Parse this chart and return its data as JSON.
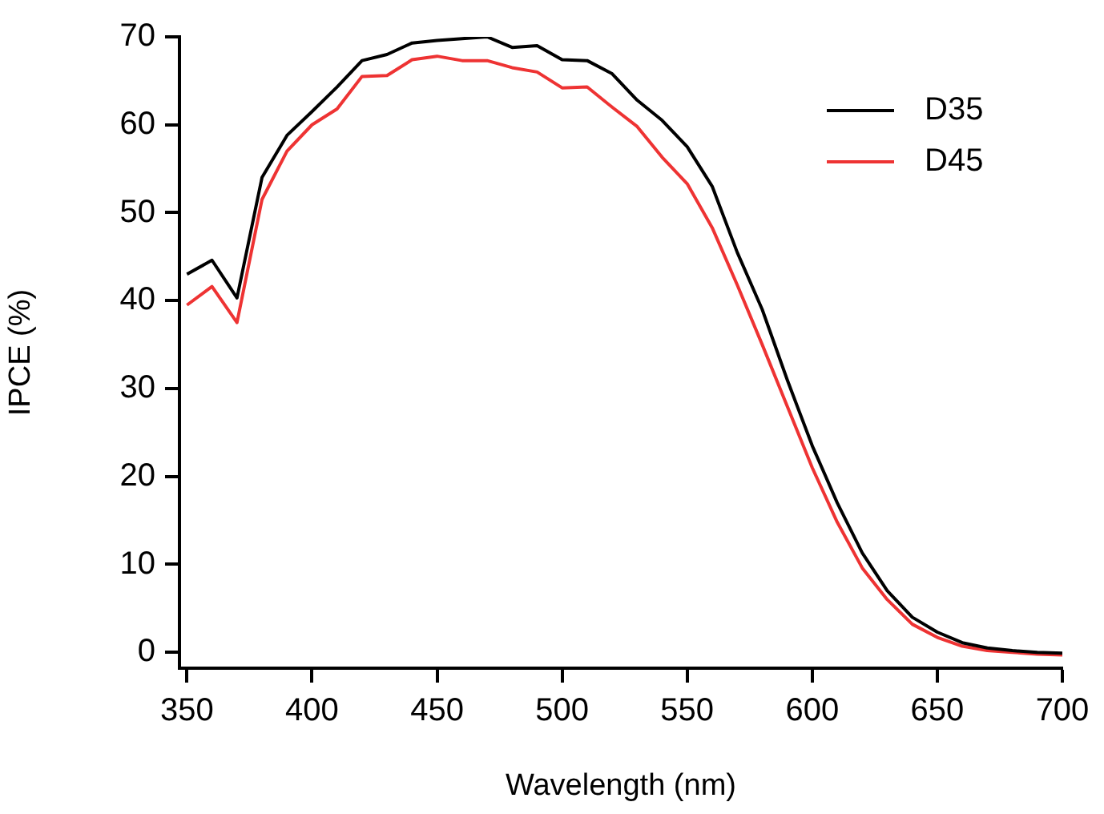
{
  "chart_data": {
    "type": "line",
    "xlabel": "Wavelength (nm)",
    "ylabel": "IPCE (%)",
    "x": [
      350,
      360,
      370,
      380,
      390,
      400,
      410,
      420,
      430,
      440,
      450,
      460,
      470,
      480,
      490,
      500,
      510,
      520,
      530,
      540,
      550,
      560,
      570,
      580,
      590,
      600,
      610,
      620,
      630,
      640,
      650,
      660,
      670,
      680,
      690,
      700
    ],
    "series": [
      {
        "name": "D35",
        "color": "#000000",
        "values": [
          43,
          44.6,
          40.3,
          54,
          58.8,
          61.5,
          64.3,
          67.3,
          68,
          69.3,
          69.6,
          69.8,
          70,
          68.8,
          69,
          67.4,
          67.3,
          65.8,
          62.8,
          60.5,
          57.5,
          53,
          45.5,
          39,
          31,
          23.5,
          17,
          11.3,
          7,
          4,
          2.3,
          1.1,
          0.5,
          0.2,
          0,
          -0.1
        ]
      },
      {
        "name": "D45",
        "color": "#ee3333",
        "values": [
          39.5,
          41.6,
          37.5,
          51.5,
          57,
          60,
          61.8,
          65.5,
          65.6,
          67.4,
          67.8,
          67.3,
          67.3,
          66.5,
          66,
          64.2,
          64.3,
          62,
          59.8,
          56.3,
          53.3,
          48.3,
          41.8,
          35,
          28,
          21,
          14.8,
          9.6,
          6,
          3.2,
          1.7,
          0.7,
          0.2,
          0,
          -0.2,
          -0.3
        ]
      }
    ],
    "xlim": [
      347,
      700
    ],
    "xticks": [
      350,
      400,
      450,
      500,
      550,
      600,
      650,
      700
    ],
    "ylim": [
      -1.8,
      70
    ],
    "yticks": [
      0,
      10,
      20,
      30,
      40,
      50,
      60,
      70
    ],
    "grid": false,
    "legend": "top right",
    "marker": "none",
    "line_style": "solid"
  }
}
